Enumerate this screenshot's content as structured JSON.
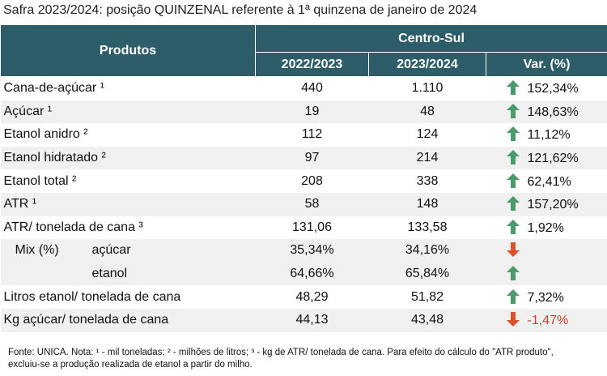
{
  "title": "Safra 2023/2024: posição QUINZENAL referente à 1ª quinzena de janeiro de 2024",
  "header": {
    "products": "Produtos",
    "region": "Centro-Sul",
    "columns": [
      "2022/2023",
      "2023/2024",
      "Var. (%)"
    ]
  },
  "rows_top": [
    {
      "label": "Cana-de-açúcar ¹",
      "values": [
        "440",
        "1.110"
      ],
      "var": "152,34%"
    },
    {
      "label": "Açúcar ¹",
      "values": [
        "19",
        "48"
      ],
      "var": "148,63%"
    },
    {
      "label": "Etanol anidro ²",
      "values": [
        "112",
        "124"
      ],
      "var": "11,12%"
    },
    {
      "label": "Etanol hidratado ²",
      "values": [
        "97",
        "214"
      ],
      "var": "121,62%"
    },
    {
      "label": "Etanol total ²",
      "values": [
        "208",
        "338"
      ],
      "var": "62,41%"
    },
    {
      "label": "ATR ¹",
      "values": [
        "58",
        "148"
      ],
      "var": "157,20%"
    },
    {
      "label": "ATR/ tonelada de cana ³",
      "values": [
        "131,06",
        "133,58"
      ],
      "var": "1,92%"
    }
  ],
  "mix": {
    "label": "Mix (%)",
    "rows": [
      {
        "label": "açúcar",
        "values": [
          "35,34%",
          "34,16%"
        ]
      },
      {
        "label": "etanol",
        "values": [
          "64,66%",
          "65,84%"
        ]
      }
    ]
  },
  "rows_bottom": [
    {
      "label": "Litros etanol/ tonelada de cana",
      "values": [
        "48,29",
        "51,82"
      ],
      "var": "7,32%"
    },
    {
      "label": "Kg açúcar/ tonelada de cana",
      "values": [
        "44,13",
        "43,48"
      ],
      "var": "-1,47%"
    }
  ],
  "footnote": "Fonte: UNICA. Nota: ¹ - mil toneladas; ² - milhões de litros; ³ - kg de ATR/ tonelada de cana. Para efeito do cálculo do \"ATR produto\", excluiu-se a produção realizada de etanol a partir do milho."
}
